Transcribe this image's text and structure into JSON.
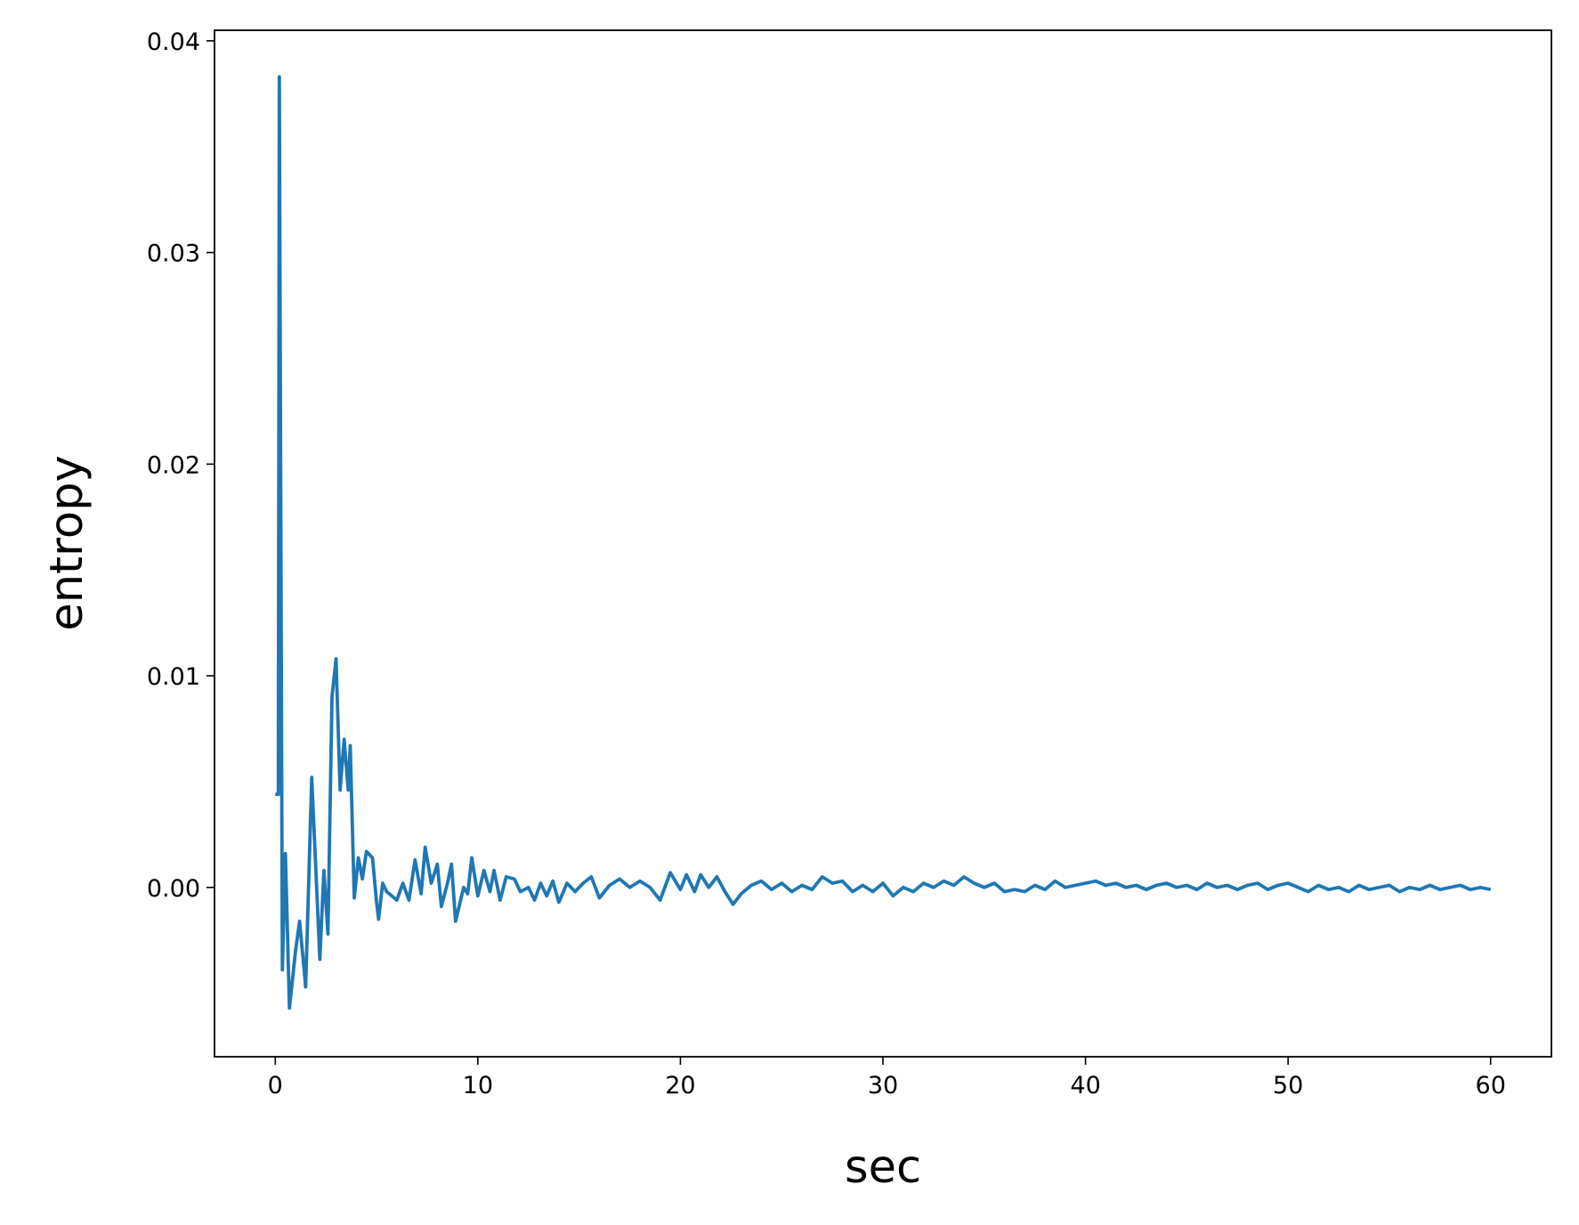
{
  "chart_data": {
    "type": "line",
    "x_label": "sec",
    "y_label": "entropy",
    "xlim": [
      -3,
      63
    ],
    "ylim": [
      -0.008,
      0.0405
    ],
    "xticks": [
      0,
      10,
      20,
      30,
      40,
      50,
      60
    ],
    "yticks": [
      {
        "value": 0,
        "label": "0.00"
      },
      0.01,
      0.02,
      0.03,
      0.04
    ],
    "grid": false,
    "x": [
      0,
      0.15,
      0.2,
      0.35,
      0.5,
      0.7,
      1.0,
      1.2,
      1.5,
      1.8,
      2.2,
      2.4,
      2.6,
      2.8,
      3.0,
      3.2,
      3.4,
      3.6,
      3.7,
      3.9,
      4.1,
      4.3,
      4.5,
      4.8,
      5.0,
      5.1,
      5.3,
      5.5,
      6.0,
      6.3,
      6.6,
      6.9,
      7.2,
      7.4,
      7.7,
      8.0,
      8.2,
      8.5,
      8.7,
      8.9,
      9.3,
      9.5,
      9.7,
      10.0,
      10.3,
      10.6,
      10.8,
      11.1,
      11.4,
      11.8,
      12.1,
      12.5,
      12.8,
      13.1,
      13.4,
      13.7,
      14.0,
      14.4,
      14.8,
      15.2,
      15.6,
      16.0,
      16.5,
      17.0,
      17.5,
      18.0,
      18.5,
      19.0,
      19.5,
      20.0,
      20.3,
      20.7,
      21.0,
      21.4,
      21.8,
      22.2,
      22.6,
      23.0,
      23.5,
      24.0,
      24.5,
      25.0,
      25.5,
      26.0,
      26.5,
      27.0,
      27.5,
      28.0,
      28.5,
      29.0,
      29.5,
      30.0,
      30.5,
      31.0,
      31.5,
      32.0,
      32.5,
      33.0,
      33.5,
      34.0,
      34.5,
      35.0,
      35.5,
      36.0,
      36.5,
      37.0,
      37.5,
      38.0,
      38.5,
      39.0,
      39.5,
      40.0,
      40.5,
      41.0,
      41.5,
      42.0,
      42.5,
      43.0,
      43.5,
      44.0,
      44.5,
      45.0,
      45.5,
      46.0,
      46.5,
      47.0,
      47.5,
      48.0,
      48.5,
      49.0,
      49.5,
      50.0,
      50.5,
      51.0,
      51.5,
      52.0,
      52.5,
      53.0,
      53.5,
      54.0,
      54.5,
      55.0,
      55.5,
      56.0,
      56.5,
      57.0,
      57.5,
      58.0,
      58.5,
      59.0,
      59.5,
      60.0
    ],
    "series": [
      {
        "color": "#1f77b4",
        "values": [
          0.0044,
          0.0044,
          0.0383,
          -0.0039,
          0.0016,
          -0.0057,
          -0.003,
          -0.0016,
          -0.0047,
          0.0052,
          -0.0034,
          0.0008,
          -0.0022,
          0.009,
          0.0108,
          0.0046,
          0.007,
          0.0046,
          0.0067,
          -0.0005,
          0.0014,
          0.0004,
          0.0017,
          0.0014,
          -0.0007,
          -0.0015,
          0.0002,
          -0.0002,
          -0.0006,
          0.0002,
          -0.0006,
          0.0013,
          -0.0003,
          0.0019,
          0.0002,
          0.0011,
          -0.0009,
          0.0002,
          0.0011,
          -0.0016,
          0.0,
          -0.0003,
          0.0014,
          -0.0004,
          0.0008,
          -0.0002,
          0.0008,
          -0.0006,
          0.0005,
          0.0004,
          -0.0002,
          0.0,
          -0.0006,
          0.0002,
          -0.0004,
          0.0003,
          -0.0007,
          0.0002,
          -0.0002,
          0.0002,
          0.0005,
          -0.0005,
          0.0001,
          0.0004,
          0.0,
          0.0003,
          0.0,
          -0.0006,
          0.0007,
          -0.0001,
          0.0006,
          -0.0002,
          0.0006,
          0.0,
          0.0005,
          -0.0002,
          -0.0008,
          -0.0003,
          0.0001,
          0.0003,
          -0.0001,
          0.0002,
          -0.0002,
          0.0001,
          -0.0001,
          0.0005,
          0.0002,
          0.0003,
          -0.0002,
          0.0001,
          -0.0002,
          0.0002,
          -0.0004,
          0.0,
          -0.0002,
          0.0002,
          0.0,
          0.0003,
          0.0001,
          0.0005,
          0.0002,
          0.0,
          0.0002,
          -0.0002,
          -0.0001,
          -0.0002,
          0.0001,
          -0.0001,
          0.0003,
          0.0,
          0.0001,
          0.0002,
          0.0003,
          0.0001,
          0.0002,
          0.0,
          0.0001,
          -0.0001,
          0.0001,
          0.0002,
          0.0,
          0.0001,
          -0.0001,
          0.0002,
          0.0,
          0.0001,
          -0.0001,
          0.0001,
          0.0002,
          -0.0001,
          0.0001,
          0.0002,
          0.0,
          -0.0002,
          0.0001,
          -0.0001,
          0.0,
          -0.0002,
          0.0001,
          -0.0001,
          0.0,
          0.0001,
          -0.0002,
          0.0,
          -0.0001,
          0.0001,
          -0.0001,
          0.0,
          0.0001,
          -0.0001,
          0.0,
          -0.0001
        ]
      }
    ]
  }
}
